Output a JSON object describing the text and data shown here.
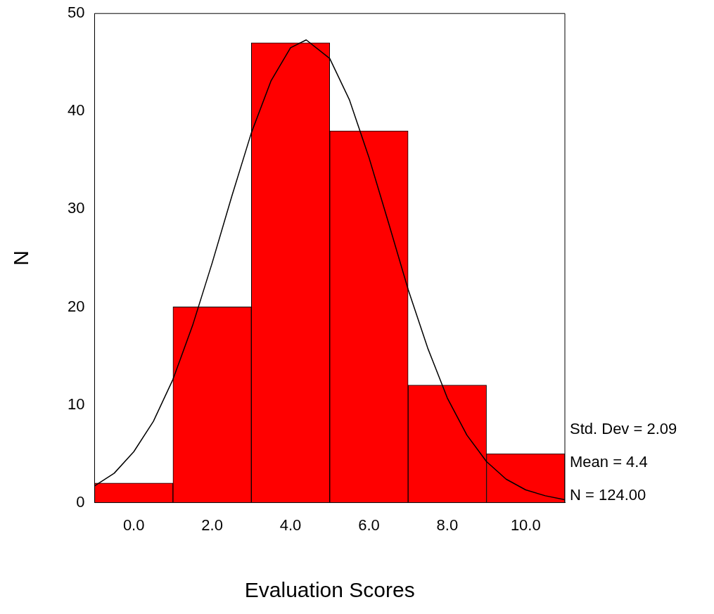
{
  "chart_data": {
    "type": "histogram",
    "xlabel": "Evaluation Scores",
    "ylabel": "N",
    "bins": [
      -1,
      1,
      3,
      5,
      7,
      9,
      11
    ],
    "series": [
      {
        "color": "#ff0000",
        "values": [
          2,
          20,
          47,
          38,
          12,
          5
        ]
      },
      {
        "type": "line",
        "color": "#000000",
        "x": [
          -1,
          -0.5,
          0,
          0.5,
          1,
          1.5,
          2,
          2.5,
          3,
          3.5,
          4,
          4.4,
          5,
          5.5,
          6,
          6.5,
          7,
          7.5,
          8,
          8.5,
          9,
          9.5,
          10,
          10.5,
          11
        ],
        "values": [
          1.7,
          3,
          5.2,
          8.3,
          12.6,
          18.1,
          24.5,
          31.3,
          37.8,
          43.1,
          46.5,
          47.3,
          45.4,
          41.2,
          35.3,
          28.6,
          21.8,
          15.8,
          10.7,
          6.9,
          4.2,
          2.4,
          1.3,
          0.7,
          0.3
        ]
      }
    ],
    "xlim": [
      -1,
      11
    ],
    "ylim": [
      0,
      50
    ],
    "xticks": [
      {
        "value": 0,
        "label": "0.0"
      },
      {
        "value": 2,
        "label": "2.0"
      },
      {
        "value": 4,
        "label": "4.0"
      },
      {
        "value": 6,
        "label": "6.0"
      },
      {
        "value": 8,
        "label": "8.0"
      },
      {
        "value": 10,
        "label": "10.0"
      }
    ],
    "yticks": [
      0,
      10,
      20,
      30,
      40,
      50
    ],
    "annotations": [
      "Std. Dev = 2.09",
      "Mean = 4.4",
      "N = 124.00"
    ],
    "grid": false,
    "legend": false,
    "marker": "none",
    "line_style": "solid"
  }
}
